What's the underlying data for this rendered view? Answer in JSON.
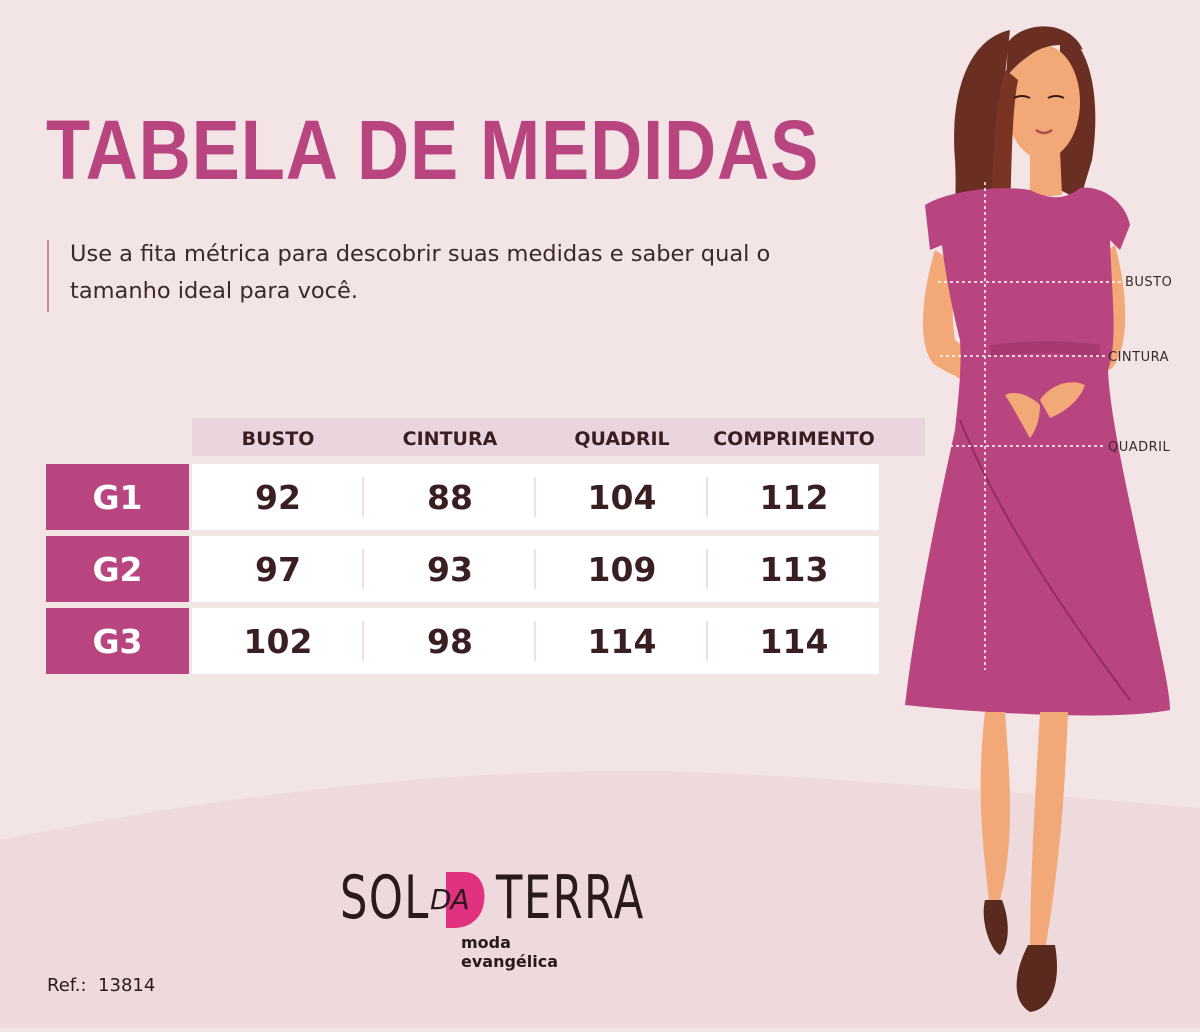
{
  "title": "TABELA DE MEDIDAS",
  "subtitle": "Use a fita métrica para descobrir suas medidas e saber qual o tamanho ideal para você.",
  "table": {
    "columns": [
      "BUSTO",
      "CINTURA",
      "QUADRIL",
      "COMPRIMENTO"
    ],
    "rows": [
      {
        "size": "G1",
        "values": [
          "92",
          "88",
          "104",
          "112"
        ]
      },
      {
        "size": "G2",
        "values": [
          "97",
          "93",
          "109",
          "113"
        ]
      },
      {
        "size": "G3",
        "values": [
          "102",
          "98",
          "114",
          "114"
        ]
      }
    ]
  },
  "figure": {
    "labels": {
      "bust": "BUSTO",
      "waist": "CINTURA",
      "hip": "QUADRIL"
    }
  },
  "logo": {
    "sol": "SOL",
    "da": "DA",
    "terra": "TERRA",
    "tagline": "moda evangélica"
  },
  "ref": {
    "label": "Ref.:",
    "value": "13814"
  },
  "colors": {
    "accent": "#b8457f",
    "background": "#f3e4e6",
    "header_band": "#ead4de",
    "logo_accent": "#e0327f"
  }
}
